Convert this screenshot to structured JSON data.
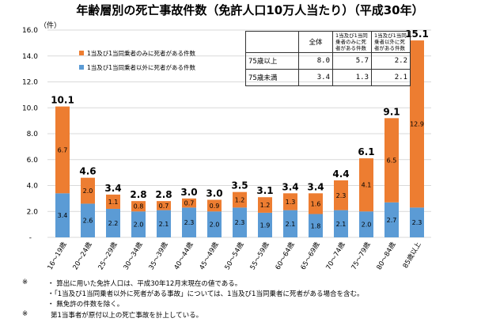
{
  "title": "年齢層別の死亡事故件数（免許人口10万人当たり）（平成30年）",
  "chart_data": {
    "type": "bar",
    "stacked": true,
    "title": "年齢層別の死亡事故件数（免許人口10万人当たり）（平成30年）",
    "ylabel": "（件）",
    "ylim": [
      0,
      16
    ],
    "yticks": [
      "-",
      "2.0",
      "4.0",
      "6.0",
      "8.0",
      "10.0",
      "12.0",
      "14.0",
      "16.0"
    ],
    "grid": true,
    "legend_position": "top-left",
    "categories": [
      "16～19歳",
      "20～24歳",
      "25～29歳",
      "30～34歳",
      "35～39歳",
      "40～44歳",
      "45～49歳",
      "50～54歳",
      "55～59歳",
      "60～64歳",
      "65～69歳",
      "70～74歳",
      "75～79歳",
      "80～84歳",
      "85歳以上"
    ],
    "series": [
      {
        "name": "1当及び1当同乗者以外に死者がある件数",
        "color": "#5b9bd5",
        "values": [
          3.4,
          2.6,
          2.2,
          2.0,
          2.1,
          2.3,
          2.0,
          2.3,
          1.9,
          2.1,
          1.8,
          2.1,
          2.0,
          2.7,
          2.3
        ]
      },
      {
        "name": "1当及び1当同乗者のみに死者がある件数",
        "color": "#ed7d31",
        "values": [
          6.7,
          2.0,
          1.1,
          0.8,
          0.7,
          0.7,
          0.9,
          1.2,
          1.2,
          1.3,
          1.6,
          2.3,
          4.1,
          6.5,
          12.9
        ]
      }
    ],
    "totals": [
      "10.1",
      "4.6",
      "3.4",
      "2.8",
      "2.8",
      "3.0",
      "3.0",
      "3.5",
      "3.1",
      "3.4",
      "3.4",
      "4.4",
      "6.1",
      "9.1",
      "15.1"
    ]
  },
  "table": {
    "headers": [
      "",
      "全体",
      "1当及び1当同乗者のみに死者がある件数",
      "1当及び1当同乗者以外に死者がある件数"
    ],
    "rows": [
      [
        "75歳以上",
        "8.0",
        "5.7",
        "2.2"
      ],
      [
        "75歳未満",
        "3.4",
        "1.3",
        "2.1"
      ]
    ]
  },
  "notes": {
    "mark": "※",
    "lines": [
      "・ 算出に用いた免許人口は、平成30年12月末現在の値である。",
      "・「1当及び1当同乗者以外に死者がある事故」については、1当及び1当同乗者に死者がある場合を含む。",
      "・ 無免許の件数を除く。"
    ],
    "mark2": "※",
    "line2": "第1当事者が原付以上の死亡事故を計上している。"
  }
}
